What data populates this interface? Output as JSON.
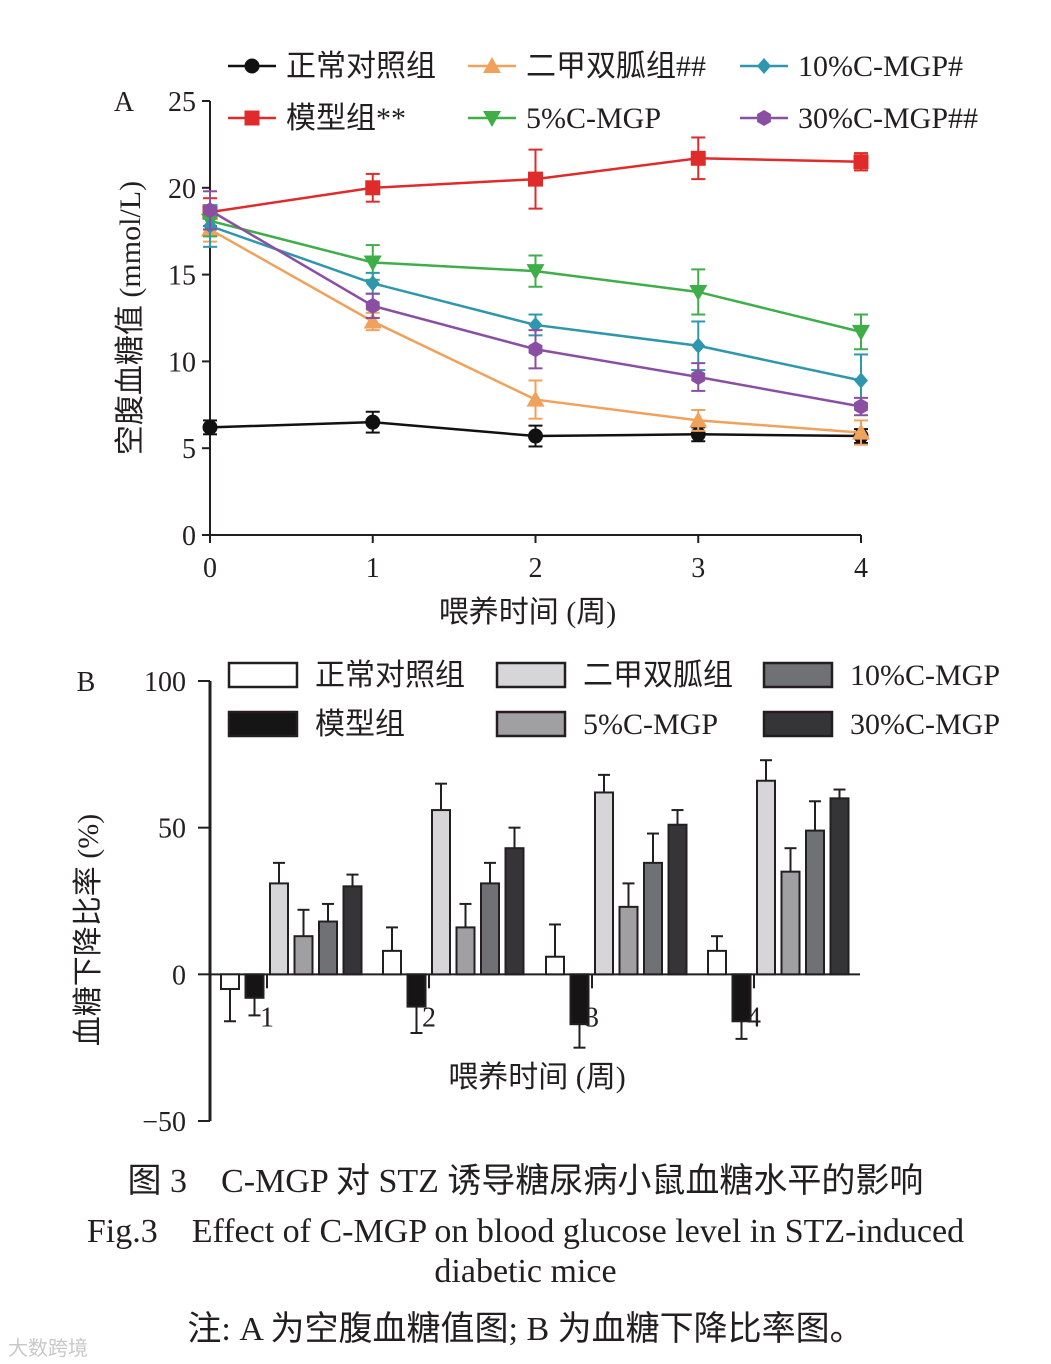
{
  "chart_data": [
    {
      "panel_label": "A",
      "type": "line",
      "ylabel": "空腹血糖值 (mmol/L)",
      "xlabel": "喂养时间 (周)",
      "x": [
        0,
        1,
        2,
        3,
        4
      ],
      "xlim": [
        0,
        4
      ],
      "ylim": [
        0,
        25
      ],
      "yticks": [
        "0",
        "5",
        "10",
        "15",
        "20",
        "25"
      ],
      "xticks": [
        "0",
        "1",
        "2",
        "3",
        "4"
      ],
      "legend_position": "top",
      "series": [
        {
          "name": "正常对照组",
          "marker": "circle",
          "color": "#111111",
          "values": [
            6.2,
            6.5,
            5.7,
            5.8,
            5.7
          ],
          "errors": [
            0.4,
            0.6,
            0.6,
            0.4,
            0.4
          ]
        },
        {
          "name": "模型组**",
          "marker": "square",
          "color": "#e02b2b",
          "values": [
            18.6,
            20.0,
            20.5,
            21.7,
            21.5
          ],
          "errors": [
            0.8,
            0.8,
            1.7,
            1.2,
            0.5
          ]
        },
        {
          "name": "二甲双胍组##",
          "marker": "triangle-up",
          "color": "#f0a25c",
          "values": [
            17.6,
            12.3,
            7.8,
            6.6,
            5.9
          ],
          "errors": [
            0.7,
            0.5,
            1.1,
            0.6,
            0.7
          ]
        },
        {
          "name": "5%C-MGP",
          "marker": "triangle-down",
          "color": "#3fae49",
          "values": [
            18.1,
            15.7,
            15.2,
            14.0,
            11.7
          ],
          "errors": [
            0.9,
            1.0,
            0.9,
            1.3,
            1.0
          ]
        },
        {
          "name": "10%C-MGP#",
          "marker": "diamond",
          "color": "#2e97ae",
          "values": [
            17.8,
            14.5,
            12.1,
            10.9,
            8.9
          ],
          "errors": [
            1.2,
            0.6,
            0.6,
            1.4,
            1.5
          ]
        },
        {
          "name": "30%C-MGP##",
          "marker": "hexagon",
          "color": "#8a4fa3",
          "values": [
            18.7,
            13.2,
            10.7,
            9.1,
            7.4
          ],
          "errors": [
            1.1,
            0.7,
            1.1,
            0.8,
            0.5
          ]
        }
      ]
    },
    {
      "panel_label": "B",
      "type": "bar",
      "ylabel": "血糖下降比率 (%)",
      "xlabel": "喂养时间 (周)",
      "categories": [
        "1",
        "2",
        "3",
        "4"
      ],
      "ylim": [
        -50,
        100
      ],
      "yticks": [
        "−50",
        "0",
        "50",
        "100"
      ],
      "legend_position": "top",
      "series": [
        {
          "name": "正常对照组",
          "fill": "#ffffff",
          "values": [
            -5,
            8,
            6,
            8
          ],
          "errors": [
            11,
            8,
            11,
            5
          ]
        },
        {
          "name": "模型组",
          "fill": "#151515",
          "values": [
            -8,
            -11,
            -17,
            -16
          ],
          "errors": [
            6,
            9,
            8,
            6
          ]
        },
        {
          "name": "二甲双胍组",
          "fill": "#d6d6d8",
          "values": [
            31,
            56,
            62,
            66
          ],
          "errors": [
            7,
            9,
            6,
            7
          ]
        },
        {
          "name": "5%C-MGP",
          "fill": "#a0a0a3",
          "values": [
            13,
            16,
            23,
            35
          ],
          "errors": [
            9,
            8,
            8,
            8
          ]
        },
        {
          "name": "10%C-MGP",
          "fill": "#707174",
          "values": [
            18,
            31,
            38,
            49
          ],
          "errors": [
            6,
            7,
            10,
            10
          ]
        },
        {
          "name": "30%C-MGP",
          "fill": "#353538",
          "values": [
            30,
            43,
            51,
            60
          ],
          "errors": [
            4,
            7,
            5,
            3
          ]
        }
      ]
    }
  ],
  "caption": {
    "zh": "图 3　C-MGP 对 STZ 诱导糖尿病小鼠血糖水平的影响",
    "en": "Fig.3　Effect of C-MGP on blood glucose level in STZ-induced",
    "en_line2": "diabetic mice",
    "note": "注: A 为空腹血糖值图; B 为血糖下降比率图。"
  },
  "watermark": "大数跨境"
}
